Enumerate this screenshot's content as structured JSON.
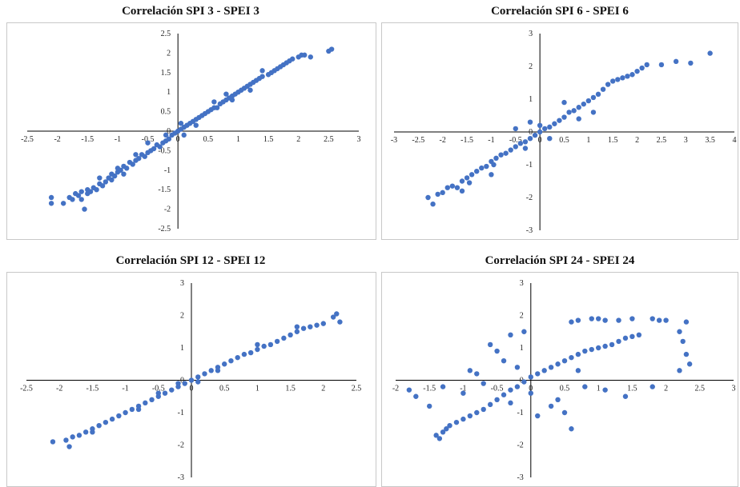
{
  "colors": {
    "point": "#4472C4",
    "axis": "#000000",
    "frame": "#c8c8c8"
  },
  "chart_data": [
    {
      "type": "scatter",
      "title": "Correlación SPI 3 - SPEI 3",
      "xlim": [
        -2.5,
        3
      ],
      "ylim": [
        -2.5,
        2.5
      ],
      "x_ticks": [
        -2.5,
        -2,
        -1.5,
        -1,
        -0.5,
        0,
        0.5,
        1,
        1.5,
        2,
        2.5,
        3
      ],
      "y_ticks": [
        -2.5,
        -2,
        -1.5,
        -1,
        -0.5,
        0,
        0.5,
        1,
        1.5,
        2,
        2.5
      ],
      "grid": false,
      "legend": "none",
      "points": [
        [
          -2.1,
          -1.7
        ],
        [
          -2.1,
          -1.85
        ],
        [
          -1.9,
          -1.85
        ],
        [
          -1.75,
          -1.75
        ],
        [
          -1.7,
          -1.6
        ],
        [
          -1.65,
          -1.65
        ],
        [
          -1.6,
          -1.75
        ],
        [
          -1.6,
          -1.55
        ],
        [
          -1.55,
          -2.0
        ],
        [
          -1.5,
          -1.6
        ],
        [
          -1.5,
          -1.5
        ],
        [
          -1.45,
          -1.55
        ],
        [
          -1.4,
          -1.45
        ],
        [
          -1.35,
          -1.5
        ],
        [
          -1.3,
          -1.35
        ],
        [
          -1.25,
          -1.4
        ],
        [
          -1.2,
          -1.3
        ],
        [
          -1.15,
          -1.2
        ],
        [
          -1.1,
          -1.25
        ],
        [
          -1.1,
          -1.1
        ],
        [
          -1.05,
          -1.15
        ],
        [
          -1.0,
          -1.05
        ],
        [
          -1.0,
          -0.95
        ],
        [
          -0.95,
          -1.0
        ],
        [
          -0.9,
          -0.9
        ],
        [
          -0.85,
          -0.95
        ],
        [
          -0.8,
          -0.8
        ],
        [
          -0.75,
          -0.85
        ],
        [
          -0.7,
          -0.75
        ],
        [
          -0.65,
          -0.7
        ],
        [
          -0.6,
          -0.6
        ],
        [
          -0.55,
          -0.65
        ],
        [
          -0.5,
          -0.55
        ],
        [
          -0.45,
          -0.5
        ],
        [
          -0.4,
          -0.45
        ],
        [
          -0.35,
          -0.35
        ],
        [
          -0.3,
          -0.4
        ],
        [
          -0.25,
          -0.3
        ],
        [
          -0.2,
          -0.25
        ],
        [
          -0.15,
          -0.2
        ],
        [
          -0.1,
          -0.1
        ],
        [
          -0.05,
          -0.05
        ],
        [
          0.0,
          0.0
        ],
        [
          0.05,
          0.05
        ],
        [
          0.1,
          0.1
        ],
        [
          0.15,
          0.15
        ],
        [
          0.2,
          0.2
        ],
        [
          0.25,
          0.25
        ],
        [
          0.3,
          0.3
        ],
        [
          0.35,
          0.35
        ],
        [
          0.4,
          0.4
        ],
        [
          0.45,
          0.45
        ],
        [
          0.5,
          0.5
        ],
        [
          0.55,
          0.55
        ],
        [
          0.6,
          0.6
        ],
        [
          0.65,
          0.6
        ],
        [
          0.7,
          0.7
        ],
        [
          0.75,
          0.75
        ],
        [
          0.8,
          0.8
        ],
        [
          0.85,
          0.85
        ],
        [
          0.9,
          0.9
        ],
        [
          0.95,
          0.95
        ],
        [
          1.0,
          1.0
        ],
        [
          1.05,
          1.05
        ],
        [
          1.1,
          1.1
        ],
        [
          1.15,
          1.15
        ],
        [
          1.2,
          1.2
        ],
        [
          1.25,
          1.25
        ],
        [
          1.3,
          1.3
        ],
        [
          1.35,
          1.35
        ],
        [
          1.4,
          1.4
        ],
        [
          1.5,
          1.45
        ],
        [
          1.55,
          1.5
        ],
        [
          1.6,
          1.55
        ],
        [
          1.65,
          1.6
        ],
        [
          1.7,
          1.65
        ],
        [
          1.75,
          1.7
        ],
        [
          1.8,
          1.75
        ],
        [
          1.85,
          1.8
        ],
        [
          1.9,
          1.85
        ],
        [
          2.0,
          1.9
        ],
        [
          2.05,
          1.95
        ],
        [
          2.1,
          1.95
        ],
        [
          2.2,
          1.9
        ],
        [
          2.5,
          2.05
        ],
        [
          2.55,
          2.1
        ],
        [
          -0.2,
          -0.1
        ],
        [
          0.05,
          0.2
        ],
        [
          0.3,
          0.15
        ],
        [
          0.6,
          0.75
        ],
        [
          0.9,
          0.8
        ],
        [
          1.2,
          1.05
        ],
        [
          -0.7,
          -0.6
        ],
        [
          -1.3,
          -1.2
        ],
        [
          -0.5,
          -0.3
        ],
        [
          0.1,
          -0.1
        ],
        [
          0.8,
          0.95
        ],
        [
          1.4,
          1.55
        ],
        [
          -0.9,
          -1.1
        ],
        [
          -1.8,
          -1.7
        ]
      ]
    },
    {
      "type": "scatter",
      "title": "Correlación SPI 6 - SPEI 6",
      "xlim": [
        -3,
        4
      ],
      "ylim": [
        -3,
        3
      ],
      "x_ticks": [
        -3,
        -2.5,
        -2,
        -1.5,
        -1,
        -0.5,
        0,
        0.5,
        1,
        1.5,
        2,
        2.5,
        3,
        3.5,
        4
      ],
      "y_ticks": [
        -3,
        -2,
        -1,
        0,
        1,
        2,
        3
      ],
      "grid": false,
      "legend": "none",
      "points": [
        [
          -2.3,
          -2.0
        ],
        [
          -2.2,
          -2.2
        ],
        [
          -2.1,
          -1.9
        ],
        [
          -2.0,
          -1.85
        ],
        [
          -1.9,
          -1.7
        ],
        [
          -1.8,
          -1.65
        ],
        [
          -1.7,
          -1.7
        ],
        [
          -1.6,
          -1.5
        ],
        [
          -1.5,
          -1.4
        ],
        [
          -1.45,
          -1.55
        ],
        [
          -1.4,
          -1.3
        ],
        [
          -1.3,
          -1.2
        ],
        [
          -1.2,
          -1.1
        ],
        [
          -1.1,
          -1.05
        ],
        [
          -1.0,
          -0.9
        ],
        [
          -0.95,
          -1.0
        ],
        [
          -0.9,
          -0.8
        ],
        [
          -0.8,
          -0.7
        ],
        [
          -0.7,
          -0.65
        ],
        [
          -0.6,
          -0.55
        ],
        [
          -0.5,
          -0.45
        ],
        [
          -0.4,
          -0.35
        ],
        [
          -0.3,
          -0.3
        ],
        [
          -0.2,
          -0.2
        ],
        [
          -0.1,
          -0.1
        ],
        [
          0.0,
          0.0
        ],
        [
          0.1,
          0.1
        ],
        [
          0.2,
          0.15
        ],
        [
          0.3,
          0.25
        ],
        [
          0.4,
          0.35
        ],
        [
          0.5,
          0.45
        ],
        [
          0.6,
          0.6
        ],
        [
          0.7,
          0.65
        ],
        [
          0.8,
          0.75
        ],
        [
          0.9,
          0.85
        ],
        [
          1.0,
          0.95
        ],
        [
          1.1,
          1.05
        ],
        [
          1.2,
          1.15
        ],
        [
          1.3,
          1.3
        ],
        [
          1.4,
          1.45
        ],
        [
          1.5,
          1.55
        ],
        [
          1.6,
          1.6
        ],
        [
          1.7,
          1.65
        ],
        [
          1.8,
          1.7
        ],
        [
          1.9,
          1.75
        ],
        [
          2.0,
          1.85
        ],
        [
          2.1,
          1.95
        ],
        [
          2.2,
          2.05
        ],
        [
          2.5,
          2.05
        ],
        [
          2.8,
          2.15
        ],
        [
          3.1,
          2.1
        ],
        [
          3.5,
          2.4
        ],
        [
          -0.5,
          0.1
        ],
        [
          -0.2,
          0.3
        ],
        [
          0.2,
          -0.2
        ],
        [
          0.5,
          0.9
        ],
        [
          -1.0,
          -1.3
        ],
        [
          -1.6,
          -1.8
        ],
        [
          0.8,
          0.4
        ],
        [
          1.1,
          0.6
        ],
        [
          -0.3,
          -0.5
        ],
        [
          0.0,
          0.2
        ]
      ]
    },
    {
      "type": "scatter",
      "title": "Correlación SPI 12 - SPEI 12",
      "xlim": [
        -2.5,
        2.5
      ],
      "ylim": [
        -3,
        3
      ],
      "x_ticks": [
        -2.5,
        -2,
        -1.5,
        -1,
        -0.5,
        0,
        0.5,
        1,
        1.5,
        2,
        2.5
      ],
      "y_ticks": [
        -3,
        -2,
        -1,
        0,
        1,
        2,
        3
      ],
      "grid": false,
      "legend": "none",
      "points": [
        [
          -2.1,
          -1.9
        ],
        [
          -1.9,
          -1.85
        ],
        [
          -1.85,
          -2.05
        ],
        [
          -1.8,
          -1.75
        ],
        [
          -1.7,
          -1.7
        ],
        [
          -1.6,
          -1.6
        ],
        [
          -1.5,
          -1.5
        ],
        [
          -1.4,
          -1.4
        ],
        [
          -1.3,
          -1.3
        ],
        [
          -1.2,
          -1.2
        ],
        [
          -1.1,
          -1.1
        ],
        [
          -1.0,
          -1.0
        ],
        [
          -0.9,
          -0.9
        ],
        [
          -0.8,
          -0.8
        ],
        [
          -0.7,
          -0.7
        ],
        [
          -0.6,
          -0.6
        ],
        [
          -0.5,
          -0.5
        ],
        [
          -0.4,
          -0.4
        ],
        [
          -0.3,
          -0.3
        ],
        [
          -0.2,
          -0.2
        ],
        [
          -0.1,
          -0.1
        ],
        [
          0.0,
          0.0
        ],
        [
          0.1,
          0.1
        ],
        [
          0.2,
          0.2
        ],
        [
          0.3,
          0.3
        ],
        [
          0.4,
          0.4
        ],
        [
          0.5,
          0.5
        ],
        [
          0.6,
          0.6
        ],
        [
          0.7,
          0.7
        ],
        [
          0.8,
          0.8
        ],
        [
          0.9,
          0.85
        ],
        [
          1.0,
          0.95
        ],
        [
          1.1,
          1.05
        ],
        [
          1.2,
          1.1
        ],
        [
          1.3,
          1.2
        ],
        [
          1.4,
          1.3
        ],
        [
          1.5,
          1.4
        ],
        [
          1.6,
          1.5
        ],
        [
          1.7,
          1.6
        ],
        [
          1.8,
          1.65
        ],
        [
          1.9,
          1.7
        ],
        [
          2.0,
          1.75
        ],
        [
          2.15,
          1.95
        ],
        [
          2.2,
          2.05
        ],
        [
          2.25,
          1.8
        ],
        [
          -1.5,
          -1.6
        ],
        [
          -0.8,
          -0.9
        ],
        [
          -0.2,
          -0.1
        ],
        [
          0.4,
          0.3
        ],
        [
          1.0,
          1.1
        ],
        [
          1.6,
          1.65
        ],
        [
          0.1,
          -0.05
        ],
        [
          -0.5,
          -0.4
        ]
      ]
    },
    {
      "type": "scatter",
      "title": "Correlación SPI 24 - SPEI 24",
      "xlim": [
        -2,
        3
      ],
      "ylim": [
        -3,
        3
      ],
      "x_ticks": [
        -2,
        -1.5,
        -1,
        -0.5,
        0,
        0.5,
        1,
        1.5,
        2,
        2.5,
        3
      ],
      "y_ticks": [
        -3,
        -2,
        -1,
        0,
        1,
        2,
        3
      ],
      "grid": false,
      "legend": "none",
      "points": [
        [
          -1.4,
          -1.7
        ],
        [
          -1.35,
          -1.8
        ],
        [
          -1.3,
          -1.6
        ],
        [
          -1.25,
          -1.5
        ],
        [
          -1.2,
          -1.4
        ],
        [
          -1.1,
          -1.3
        ],
        [
          -1.0,
          -1.2
        ],
        [
          -0.9,
          -1.1
        ],
        [
          -0.8,
          -1.0
        ],
        [
          -0.7,
          -0.9
        ],
        [
          -0.6,
          -0.75
        ],
        [
          -0.5,
          -0.6
        ],
        [
          -0.4,
          -0.45
        ],
        [
          -0.3,
          -0.3
        ],
        [
          -0.2,
          -0.2
        ],
        [
          -0.1,
          -0.05
        ],
        [
          0.0,
          0.1
        ],
        [
          0.1,
          0.2
        ],
        [
          0.2,
          0.3
        ],
        [
          0.3,
          0.4
        ],
        [
          0.4,
          0.5
        ],
        [
          0.5,
          0.6
        ],
        [
          0.6,
          0.7
        ],
        [
          0.7,
          0.8
        ],
        [
          0.8,
          0.9
        ],
        [
          0.9,
          0.95
        ],
        [
          1.0,
          1.0
        ],
        [
          1.1,
          1.05
        ],
        [
          1.2,
          1.1
        ],
        [
          1.3,
          1.2
        ],
        [
          1.4,
          1.3
        ],
        [
          1.5,
          1.35
        ],
        [
          1.6,
          1.4
        ],
        [
          -1.8,
          -0.3
        ],
        [
          -1.7,
          -0.5
        ],
        [
          -1.5,
          -0.8
        ],
        [
          -1.3,
          -0.2
        ],
        [
          -1.0,
          -0.4
        ],
        [
          -0.8,
          0.2
        ],
        [
          -0.6,
          1.1
        ],
        [
          -0.5,
          0.9
        ],
        [
          -0.4,
          0.6
        ],
        [
          -0.3,
          1.4
        ],
        [
          -0.2,
          0.4
        ],
        [
          -0.1,
          1.5
        ],
        [
          0.0,
          -0.4
        ],
        [
          0.1,
          -1.1
        ],
        [
          0.3,
          -0.8
        ],
        [
          0.4,
          -0.6
        ],
        [
          0.5,
          -1.0
        ],
        [
          0.6,
          -1.5
        ],
        [
          0.7,
          0.3
        ],
        [
          0.8,
          -0.2
        ],
        [
          0.9,
          1.9
        ],
        [
          1.0,
          1.9
        ],
        [
          1.1,
          1.85
        ],
        [
          1.3,
          1.85
        ],
        [
          1.5,
          1.9
        ],
        [
          1.8,
          1.9
        ],
        [
          1.9,
          1.85
        ],
        [
          2.0,
          1.85
        ],
        [
          2.2,
          1.5
        ],
        [
          2.25,
          1.2
        ],
        [
          2.3,
          1.8
        ],
        [
          2.35,
          0.5
        ],
        [
          2.3,
          0.8
        ],
        [
          2.2,
          0.3
        ],
        [
          1.8,
          -0.2
        ],
        [
          1.4,
          -0.5
        ],
        [
          1.1,
          -0.3
        ],
        [
          -0.3,
          -0.7
        ],
        [
          -0.7,
          -0.1
        ],
        [
          -0.9,
          0.3
        ],
        [
          0.6,
          1.8
        ],
        [
          0.7,
          1.85
        ]
      ]
    }
  ]
}
